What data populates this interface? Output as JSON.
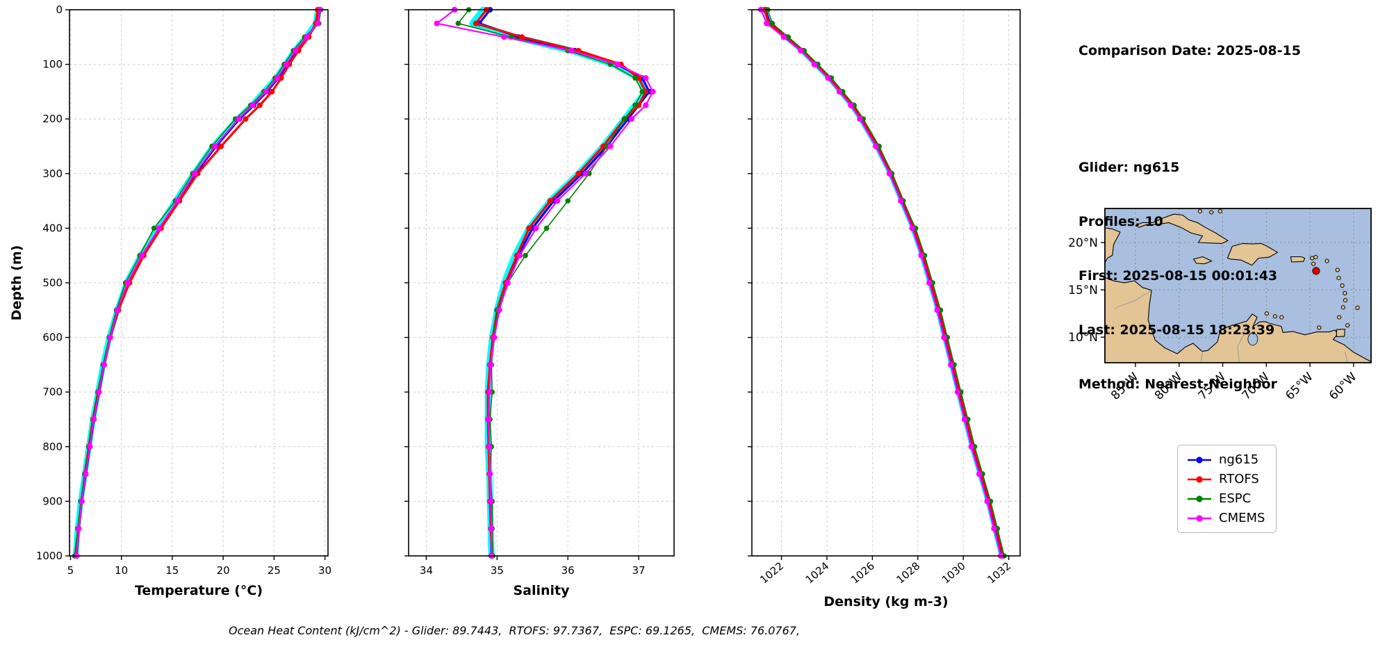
{
  "info": {
    "comparison_date": "Comparison Date: 2025-08-15",
    "glider": "Glider: ng615",
    "profiles": "Profiles: 10",
    "first": "First: 2025-08-15 00:01:43",
    "last": "Last: 2025-08-15 18:23:39",
    "method": "Method: Nearest-Neighbor"
  },
  "caption": "Ocean Heat Content (kJ/cm^2) - Glider: 89.7443,  RTOFS: 97.7367,  ESPC: 69.1265,  CMEMS: 76.0767,",
  "legend": {
    "items": [
      {
        "label": "ng615",
        "color": "#0000ff"
      },
      {
        "label": "RTOFS",
        "color": "#ff0000"
      },
      {
        "label": "ESPC",
        "color": "#008000"
      },
      {
        "label": "CMEMS",
        "color": "#ff00ff"
      }
    ]
  },
  "colors": {
    "glider_envelope": "#00ffff",
    "ng615": "#0000ff",
    "rtofs": "#ff0000",
    "espc": "#008000",
    "cmems": "#ff00ff",
    "grid": "#c8c8c8",
    "frame": "#000000"
  },
  "chart_data": [
    {
      "id": "temperature",
      "type": "line",
      "xlabel": "Temperature (°C)",
      "ylabel": "Depth (m)",
      "xlim": [
        4.9,
        30.3
      ],
      "ylim": [
        0,
        1000
      ],
      "y_inverted": true,
      "grid": true,
      "xticks": [
        5,
        10,
        15,
        20,
        25,
        30
      ],
      "yticks": [
        0,
        100,
        200,
        300,
        400,
        500,
        600,
        700,
        800,
        900,
        1000
      ],
      "rotate_xticks": false,
      "depths": [
        0,
        25,
        50,
        75,
        100,
        125,
        150,
        175,
        200,
        250,
        300,
        350,
        400,
        450,
        500,
        550,
        600,
        650,
        700,
        750,
        800,
        850,
        900,
        950,
        1000
      ],
      "series": [
        {
          "name": "glider-profiles",
          "color": "#00ffff",
          "lw": 8,
          "marker": 0,
          "values": [
            29.3,
            29.1,
            28.1,
            27.0,
            26.1,
            25.2,
            24.0,
            22.8,
            21.4,
            19.0,
            17.1,
            15.3,
            13.6,
            11.9,
            10.5,
            9.6,
            8.8,
            8.2,
            7.7,
            7.2,
            6.8,
            6.4,
            6.0,
            5.7,
            5.5
          ]
        },
        {
          "name": "ng615",
          "color": "#0000ff",
          "lw": 3.2,
          "marker": 4,
          "values": [
            29.4,
            29.2,
            28.3,
            27.2,
            26.3,
            25.4,
            24.3,
            23.0,
            21.6,
            19.3,
            17.3,
            15.6,
            13.8,
            12.1,
            10.7,
            9.7,
            8.9,
            8.3,
            7.8,
            7.3,
            6.9,
            6.5,
            6.1,
            5.8,
            5.6
          ]
        },
        {
          "name": "RTOFS",
          "color": "#ff0000",
          "lw": 3.2,
          "marker": 4,
          "values": [
            29.3,
            29.1,
            28.4,
            27.4,
            26.5,
            25.7,
            24.8,
            23.6,
            22.2,
            19.8,
            17.5,
            15.7,
            13.9,
            12.2,
            10.8,
            9.7,
            8.9,
            8.3,
            7.7,
            7.2,
            6.8,
            6.4,
            6.1,
            5.8,
            5.5
          ]
        },
        {
          "name": "ESPC",
          "color": "#008000",
          "lw": 1.6,
          "marker": 3.8,
          "values": [
            29.6,
            29.4,
            28.0,
            26.9,
            26.0,
            25.1,
            24.0,
            22.7,
            21.2,
            18.9,
            17.0,
            15.3,
            13.2,
            11.8,
            10.4,
            9.5,
            8.8,
            8.2,
            7.7,
            7.2,
            6.8,
            6.4,
            6.0,
            5.7,
            5.4
          ]
        },
        {
          "name": "CMEMS",
          "color": "#ff00ff",
          "lw": 2.2,
          "marker": 4.2,
          "values": [
            29.5,
            29.3,
            28.2,
            27.1,
            26.2,
            25.3,
            24.2,
            22.9,
            21.5,
            19.2,
            17.2,
            15.5,
            13.7,
            12.0,
            10.6,
            9.6,
            8.9,
            8.3,
            7.8,
            7.3,
            6.9,
            6.5,
            6.1,
            5.8,
            5.6
          ]
        }
      ]
    },
    {
      "id": "salinity",
      "type": "line",
      "xlabel": "Salinity",
      "ylabel": "Depth (m)",
      "xlim": [
        33.75,
        37.5
      ],
      "ylim": [
        0,
        1000
      ],
      "y_inverted": true,
      "grid": true,
      "xticks": [
        34,
        35,
        36,
        37
      ],
      "yticks": [
        0,
        100,
        200,
        300,
        400,
        500,
        600,
        700,
        800,
        900,
        1000
      ],
      "rotate_xticks": false,
      "depths": [
        0,
        25,
        50,
        75,
        100,
        125,
        150,
        175,
        200,
        250,
        300,
        350,
        400,
        450,
        500,
        550,
        600,
        650,
        700,
        750,
        800,
        850,
        900,
        950,
        1000
      ],
      "series": [
        {
          "name": "glider-profiles",
          "color": "#00ffff",
          "lw": 9,
          "marker": 0,
          "values": [
            34.8,
            34.65,
            35.25,
            36.05,
            36.65,
            37.0,
            37.1,
            36.95,
            36.8,
            36.5,
            36.15,
            35.75,
            35.45,
            35.25,
            35.1,
            35.0,
            34.93,
            34.89,
            34.87,
            34.87,
            34.87,
            34.89,
            34.9,
            34.91,
            34.92
          ]
        },
        {
          "name": "ng615",
          "color": "#0000ff",
          "lw": 3.2,
          "marker": 4,
          "values": [
            34.9,
            34.75,
            35.3,
            36.1,
            36.7,
            37.05,
            37.15,
            37.0,
            36.85,
            36.55,
            36.2,
            35.8,
            35.5,
            35.3,
            35.15,
            35.02,
            34.95,
            34.9,
            34.88,
            34.88,
            34.88,
            34.9,
            34.9,
            34.92,
            34.92
          ]
        },
        {
          "name": "RTOFS",
          "color": "#ff0000",
          "lw": 3.2,
          "marker": 4,
          "values": [
            34.85,
            34.7,
            35.35,
            36.15,
            36.75,
            37.0,
            37.1,
            37.0,
            36.8,
            36.5,
            36.15,
            35.75,
            35.45,
            35.28,
            35.12,
            35.0,
            34.94,
            34.9,
            34.87,
            34.87,
            34.88,
            34.89,
            34.9,
            34.91,
            34.93
          ]
        },
        {
          "name": "ESPC",
          "color": "#008000",
          "lw": 1.6,
          "marker": 3.8,
          "values": [
            34.6,
            34.45,
            35.2,
            36.0,
            36.6,
            36.95,
            37.05,
            36.95,
            36.8,
            36.55,
            36.3,
            36.0,
            35.7,
            35.4,
            35.15,
            35.0,
            34.95,
            34.92,
            34.93,
            34.9,
            34.92,
            34.9,
            34.93,
            34.93,
            34.94
          ]
        },
        {
          "name": "CMEMS",
          "color": "#ff00ff",
          "lw": 2.2,
          "marker": 4.2,
          "values": [
            34.4,
            34.15,
            35.1,
            36.05,
            36.7,
            37.1,
            37.2,
            37.1,
            36.9,
            36.6,
            36.25,
            35.85,
            35.55,
            35.32,
            35.15,
            35.03,
            34.96,
            34.91,
            34.89,
            34.88,
            34.89,
            34.9,
            34.91,
            34.92,
            34.92
          ]
        }
      ]
    },
    {
      "id": "density",
      "type": "line",
      "xlabel": "Density (kg m-3)",
      "ylabel": "Depth (m)",
      "xlim": [
        1020.7,
        1032.5
      ],
      "ylim": [
        0,
        1000
      ],
      "y_inverted": true,
      "grid": true,
      "xticks": [
        1022,
        1024,
        1026,
        1028,
        1030,
        1032
      ],
      "xtick_labels": [
        "1022",
        "1024",
        "1026",
        "1028",
        "1030",
        "1032"
      ],
      "yticks": [
        0,
        100,
        200,
        300,
        400,
        500,
        600,
        700,
        800,
        900,
        1000
      ],
      "rotate_xticks": true,
      "depths": [
        0,
        25,
        50,
        75,
        100,
        125,
        150,
        175,
        200,
        250,
        300,
        350,
        400,
        450,
        500,
        550,
        600,
        650,
        700,
        750,
        800,
        850,
        900,
        950,
        1000
      ],
      "series": [
        {
          "name": "glider-profiles",
          "color": "#00ffff",
          "lw": 5,
          "marker": 0,
          "values": [
            1021.25,
            1021.45,
            1022.15,
            1022.85,
            1023.45,
            1024.05,
            1024.55,
            1025.05,
            1025.45,
            1026.15,
            1026.75,
            1027.25,
            1027.75,
            1028.15,
            1028.5,
            1028.85,
            1029.15,
            1029.45,
            1029.75,
            1030.05,
            1030.35,
            1030.7,
            1031.05,
            1031.35,
            1031.65
          ]
        },
        {
          "name": "ng615",
          "color": "#0000ff",
          "lw": 3.2,
          "marker": 4,
          "values": [
            1021.3,
            1021.5,
            1022.2,
            1022.9,
            1023.5,
            1024.1,
            1024.6,
            1025.1,
            1025.5,
            1026.2,
            1026.8,
            1027.3,
            1027.8,
            1028.2,
            1028.55,
            1028.9,
            1029.2,
            1029.5,
            1029.8,
            1030.1,
            1030.4,
            1030.75,
            1031.1,
            1031.4,
            1031.7
          ]
        },
        {
          "name": "RTOFS",
          "color": "#ff0000",
          "lw": 3.2,
          "marker": 4,
          "values": [
            1021.25,
            1021.45,
            1022.25,
            1022.95,
            1023.55,
            1024.15,
            1024.65,
            1025.15,
            1025.55,
            1026.25,
            1026.85,
            1027.35,
            1027.85,
            1028.25,
            1028.6,
            1028.95,
            1029.25,
            1029.55,
            1029.85,
            1030.15,
            1030.45,
            1030.8,
            1031.15,
            1031.45,
            1031.75
          ]
        },
        {
          "name": "ESPC",
          "color": "#008000",
          "lw": 1.6,
          "marker": 3.8,
          "values": [
            1021.4,
            1021.6,
            1022.3,
            1023.0,
            1023.6,
            1024.2,
            1024.7,
            1025.2,
            1025.6,
            1026.3,
            1026.85,
            1027.35,
            1027.9,
            1028.3,
            1028.65,
            1029.0,
            1029.3,
            1029.6,
            1029.9,
            1030.2,
            1030.5,
            1030.85,
            1031.2,
            1031.5,
            1031.8
          ]
        },
        {
          "name": "CMEMS",
          "color": "#ff00ff",
          "lw": 2.2,
          "marker": 4.2,
          "values": [
            1021.1,
            1021.35,
            1022.1,
            1022.85,
            1023.45,
            1024.05,
            1024.55,
            1025.05,
            1025.45,
            1026.15,
            1026.75,
            1027.25,
            1027.75,
            1028.15,
            1028.5,
            1028.85,
            1029.15,
            1029.45,
            1029.75,
            1030.05,
            1030.35,
            1030.7,
            1031.05,
            1031.35,
            1031.65
          ]
        }
      ]
    }
  ],
  "map_inset": {
    "lon_range": [
      -88.5,
      -58.0
    ],
    "lat_range": [
      7.3,
      23.6
    ],
    "lon_ticks": [
      {
        "lon": -85,
        "label": "85°W"
      },
      {
        "lon": -80,
        "label": "80°W"
      },
      {
        "lon": -75,
        "label": "75°W"
      },
      {
        "lon": -70,
        "label": "70°W"
      },
      {
        "lon": -65,
        "label": "65°W"
      },
      {
        "lon": -60,
        "label": "60°W"
      }
    ],
    "lat_ticks": [
      {
        "lat": 20,
        "label": "20°N"
      },
      {
        "lat": 15,
        "label": "15°N"
      },
      {
        "lat": 10,
        "label": "10°N"
      }
    ],
    "marker": {
      "lon": -64.3,
      "lat": 17.0,
      "color": "#e00000"
    },
    "ocean_color": "#a8bfdf",
    "land_color": "#e3c495"
  }
}
